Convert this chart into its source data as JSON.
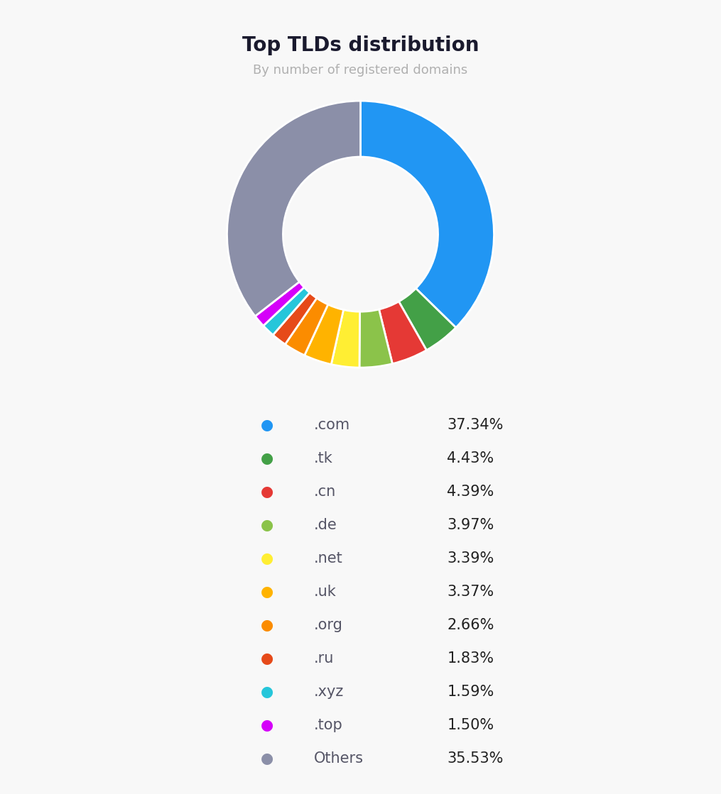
{
  "title": "Top TLDs distribution",
  "subtitle": "By number of registered domains",
  "title_fontsize": 20,
  "subtitle_fontsize": 13,
  "subtitle_color": "#b0b0b0",
  "background_color": "#f8f8f8",
  "labels": [
    ".com",
    ".tk",
    ".cn",
    ".de",
    ".net",
    ".uk",
    ".org",
    ".ru",
    ".xyz",
    ".top",
    "Others"
  ],
  "values": [
    37.34,
    4.43,
    4.39,
    3.97,
    3.39,
    3.37,
    2.66,
    1.83,
    1.59,
    1.5,
    35.53
  ],
  "colors": [
    "#2196f3",
    "#43a047",
    "#e53935",
    "#8bc34a",
    "#ffee33",
    "#ffb300",
    "#fb8c00",
    "#e64a19",
    "#26c6da",
    "#d500f9",
    "#8b8fa8"
  ],
  "legend_dot_size": 10,
  "legend_fontsize": 15,
  "legend_label_color": "#555566",
  "legend_value_color": "#222222",
  "donut_width": 0.42
}
